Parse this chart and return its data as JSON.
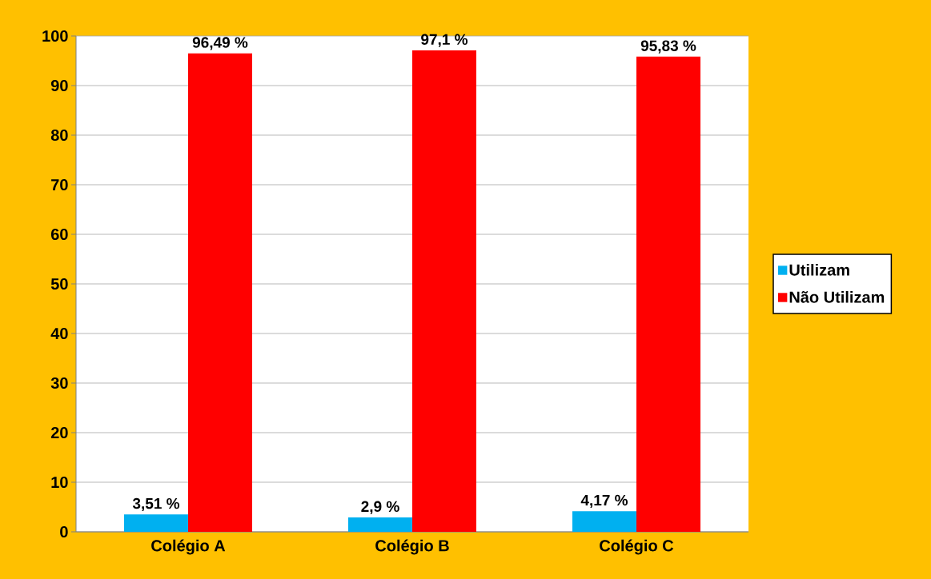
{
  "chart_data": {
    "type": "bar",
    "categories": [
      "Colégio A",
      "Colégio B",
      "Colégio C"
    ],
    "series": [
      {
        "name": "Utilizam",
        "color": "#00b0f0",
        "values": [
          3.51,
          2.9,
          4.17
        ],
        "value_labels": [
          "3,51 %",
          "2,9 %",
          "4,17 %"
        ]
      },
      {
        "name": "Não Utilizam",
        "color": "#ff0000",
        "values": [
          96.49,
          97.1,
          95.83
        ],
        "value_labels": [
          "96,49 %",
          "97,1 %",
          "95,83 %"
        ]
      }
    ],
    "ylim": [
      0,
      100
    ],
    "yticks": [
      0,
      10,
      20,
      30,
      40,
      50,
      60,
      70,
      80,
      90,
      100
    ],
    "grid": "y",
    "legend": "right"
  }
}
